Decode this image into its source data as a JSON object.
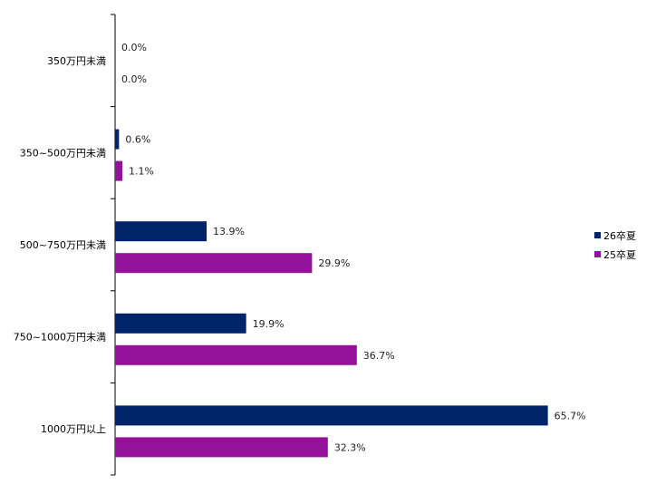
{
  "chart_data": {
    "type": "bar",
    "orientation": "horizontal",
    "title": "",
    "xlabel": "",
    "ylabel": "",
    "xlim": [
      0,
      100
    ],
    "grid": false,
    "legend_position": "right",
    "categories": [
      "350万円未満",
      "350~500万円未満",
      "500~750万円未満",
      "750~1000万円未満",
      "1000万円以上"
    ],
    "series": [
      {
        "name": "26卒夏",
        "color": "#002469",
        "values": [
          0.0,
          0.6,
          13.9,
          19.9,
          65.7
        ],
        "labels": [
          "0.0%",
          "0.6%",
          "13.9%",
          "19.9%",
          "65.7%"
        ]
      },
      {
        "name": "25卒夏",
        "color": "#94129A",
        "values": [
          0.0,
          1.1,
          29.9,
          36.7,
          32.3
        ],
        "labels": [
          "0.0%",
          "1.1%",
          "29.9%",
          "36.7%",
          "32.3%"
        ]
      }
    ]
  }
}
